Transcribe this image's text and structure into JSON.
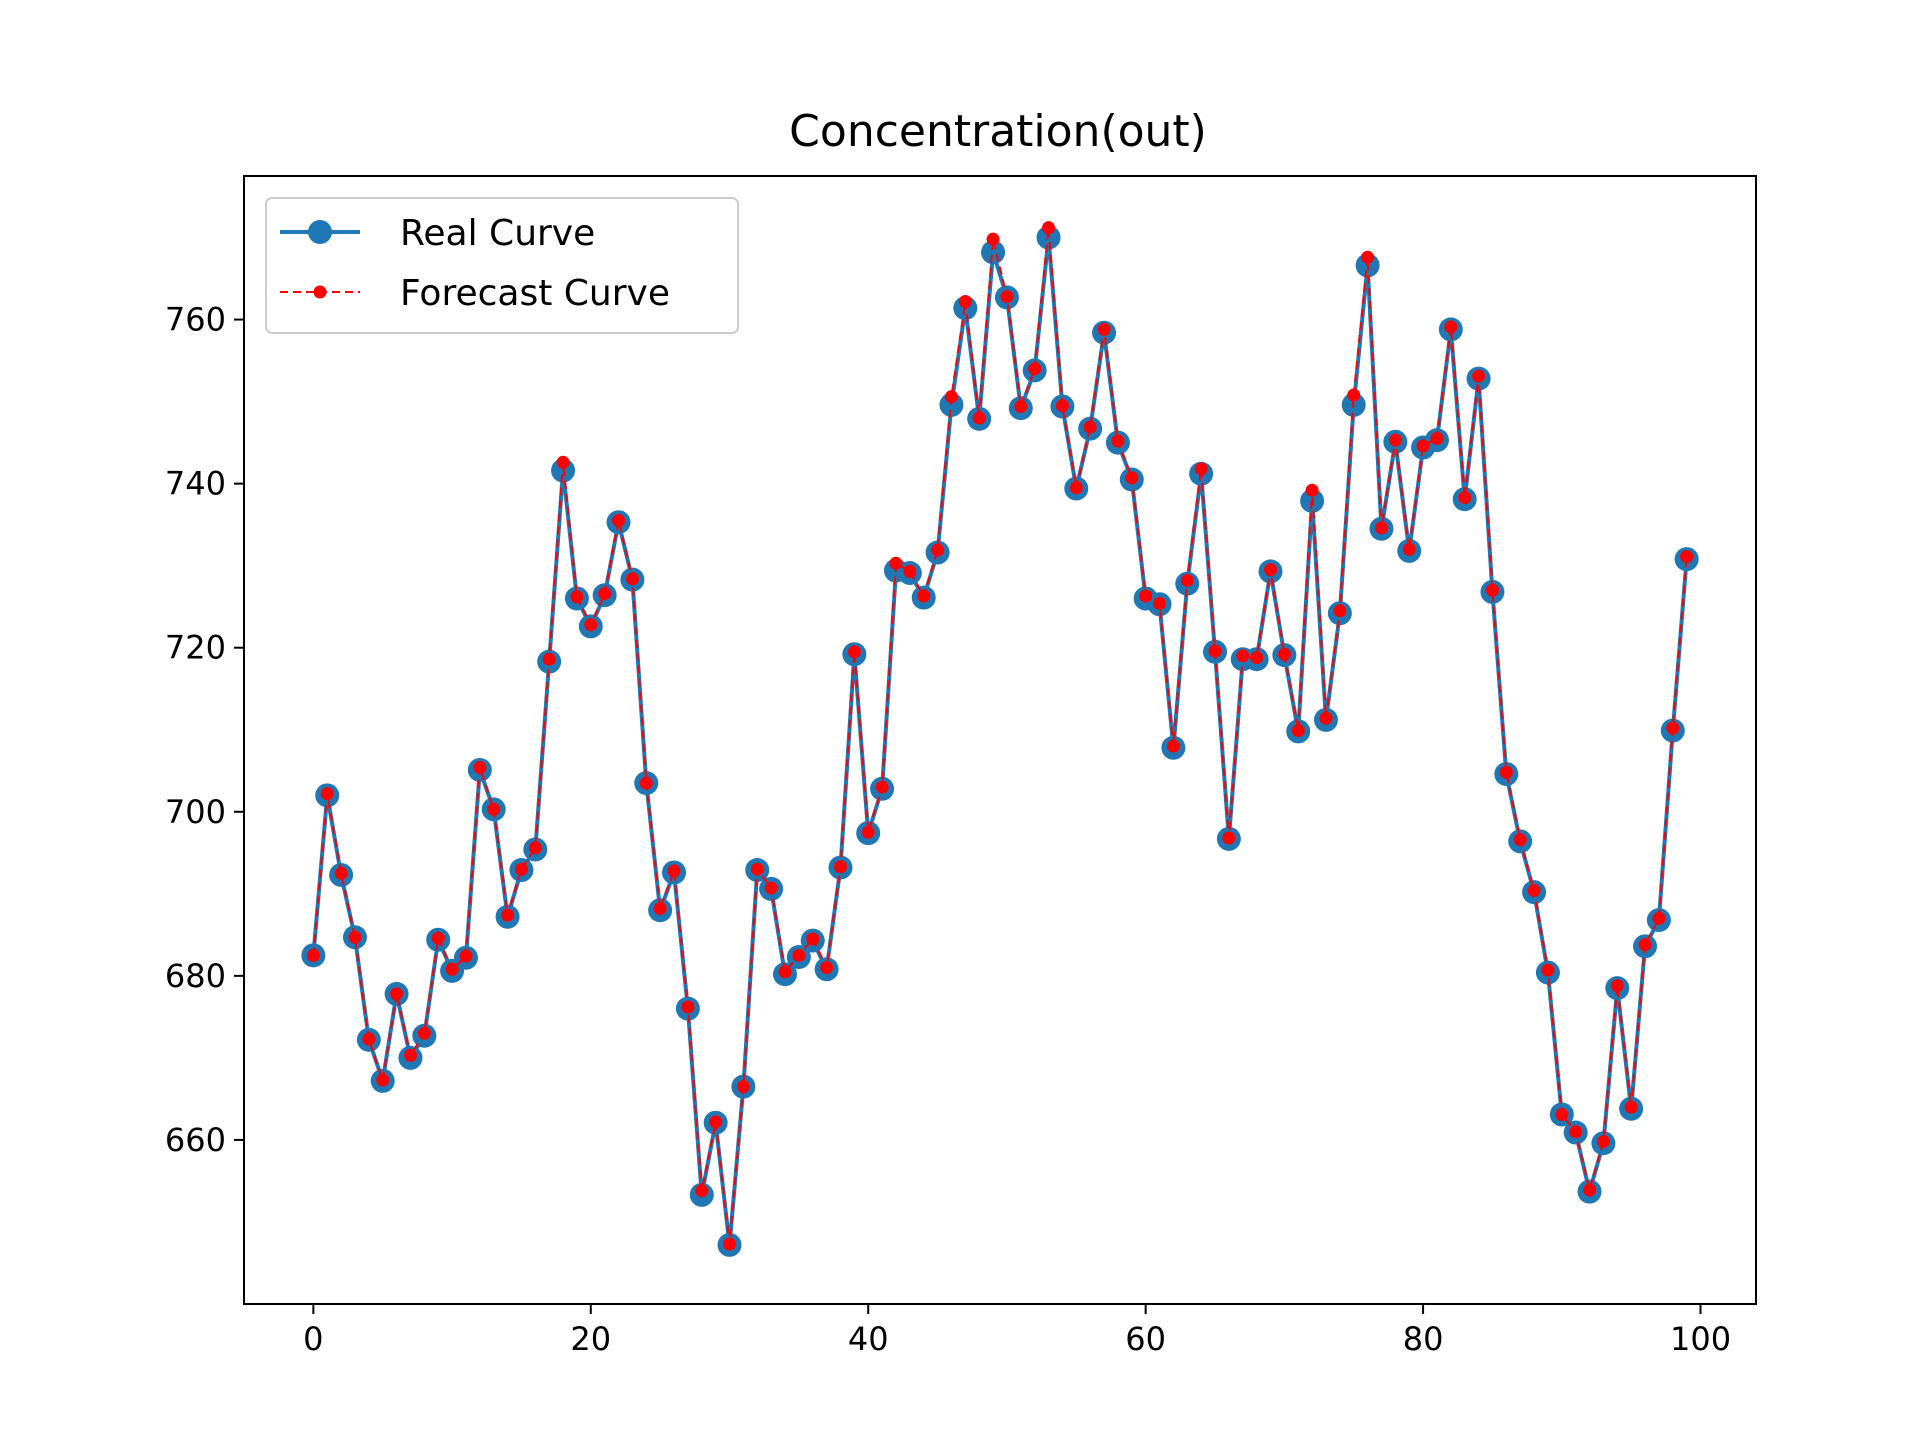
{
  "chart_data": {
    "type": "line",
    "title": "Concentration(out)",
    "xlabel": "",
    "ylabel": "",
    "xlim": [
      -5,
      104
    ],
    "ylim": [
      640,
      777.5
    ],
    "x_ticks": [
      0,
      20,
      40,
      60,
      80,
      100
    ],
    "y_ticks": [
      660,
      680,
      700,
      720,
      740,
      760
    ],
    "grid": false,
    "legend_position": "upper left",
    "x": [
      0,
      1,
      2,
      3,
      4,
      5,
      6,
      7,
      8,
      9,
      10,
      11,
      12,
      13,
      14,
      15,
      16,
      17,
      18,
      19,
      20,
      21,
      22,
      23,
      24,
      25,
      26,
      27,
      28,
      29,
      30,
      31,
      32,
      33,
      34,
      35,
      36,
      37,
      38,
      39,
      40,
      41,
      42,
      43,
      44,
      45,
      46,
      47,
      48,
      49,
      50,
      51,
      52,
      53,
      54,
      55,
      56,
      57,
      58,
      59,
      60,
      61,
      62,
      63,
      64,
      65,
      66,
      67,
      68,
      69,
      70,
      71,
      72,
      73,
      74,
      75,
      76,
      77,
      78,
      79,
      80,
      81,
      82,
      83,
      84,
      85,
      86,
      87,
      88,
      89,
      90,
      91,
      92,
      93,
      94,
      95,
      96,
      97,
      98,
      99
    ],
    "series": [
      {
        "name": "Real Curve",
        "color": "#1f77b4",
        "style": "solid line with circle markers",
        "values": [
          682.5,
          702,
          692.3,
          684.7,
          672.2,
          667.2,
          677.8,
          670,
          672.7,
          684.4,
          680.6,
          682.2,
          705.1,
          700.3,
          687.2,
          692.9,
          695.4,
          718.3,
          741.6,
          726,
          722.6,
          726.4,
          735.3,
          728.3,
          703.5,
          688,
          692.6,
          676,
          653.3,
          662.1,
          647.2,
          666.5,
          692.9,
          690.6,
          680.2,
          682.3,
          684.3,
          680.8,
          693.2,
          719.2,
          697.4,
          702.8,
          729.4,
          729.1,
          726.1,
          731.6,
          749.6,
          761.4,
          747.9,
          768.2,
          762.7,
          749.2,
          753.8,
          770,
          749.4,
          739.4,
          746.7,
          758.4,
          745,
          740.5,
          726,
          725.3,
          707.8,
          727.8,
          741.2,
          719.5,
          696.7,
          718.6,
          718.6,
          729.3,
          719.1,
          709.8,
          737.9,
          711.2,
          724.2,
          749.6,
          766.6,
          734.5,
          745.1,
          731.8,
          744.4,
          745.3,
          758.8,
          738.1,
          752.8,
          726.8,
          704.6,
          696.4,
          690.2,
          680.4,
          663.1,
          660.9,
          653.7,
          659.6,
          678.5,
          663.8,
          683.6,
          686.8,
          709.9,
          730.8
        ]
      },
      {
        "name": "Forecast Curve",
        "color": "#ff0000",
        "style": "dashed line with small dot markers",
        "values": [
          682.5,
          702.2,
          692.5,
          684.7,
          672.3,
          667.3,
          677.8,
          670.3,
          673,
          684.6,
          680.8,
          682.4,
          705.4,
          700.3,
          687.4,
          693,
          695.6,
          718.6,
          742.6,
          726.2,
          722.8,
          726.6,
          735.5,
          728.4,
          703.5,
          688.2,
          692.8,
          676.2,
          653.8,
          662.2,
          647.3,
          666.5,
          693,
          690.7,
          680.5,
          682.5,
          684.5,
          681,
          693.3,
          719.5,
          697.5,
          703,
          730.3,
          729.3,
          726.3,
          731.9,
          750.6,
          762.2,
          748,
          769.8,
          762.8,
          749.4,
          754,
          771.2,
          749.5,
          739.5,
          746.9,
          758.8,
          745.2,
          740.7,
          726.3,
          725.4,
          708,
          728.2,
          741.8,
          719.6,
          696.8,
          719,
          718.8,
          729.5,
          719.2,
          709.9,
          739.2,
          711.4,
          724.5,
          750.8,
          767.6,
          734.6,
          745.3,
          732,
          744.6,
          745.5,
          759.1,
          738.3,
          753.1,
          727,
          704.8,
          696.6,
          690.4,
          680.7,
          663.1,
          661,
          653.9,
          659.8,
          678.8,
          664,
          683.8,
          687,
          710.2,
          731.1
        ]
      }
    ]
  }
}
